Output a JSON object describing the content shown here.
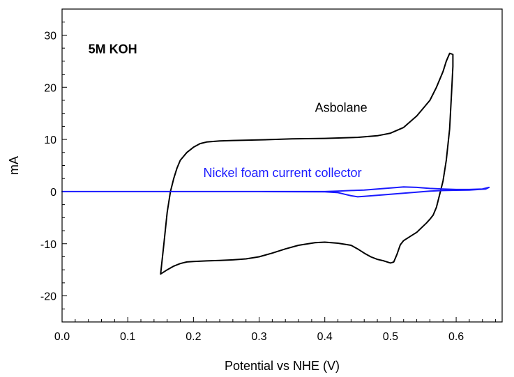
{
  "chart_data": {
    "type": "line",
    "title": "",
    "xlabel": "Potential vs NHE (V)",
    "ylabel": "mA",
    "xlim": [
      0.0,
      0.67
    ],
    "ylim": [
      -25,
      35
    ],
    "xticks": [
      0.0,
      0.1,
      0.2,
      0.3,
      0.4,
      0.5,
      0.6
    ],
    "xtick_labels": [
      "0.0",
      "0.1",
      "0.2",
      "0.3",
      "0.4",
      "0.5",
      "0.6"
    ],
    "yticks": [
      -20,
      -10,
      0,
      10,
      20,
      30
    ],
    "ytick_labels": [
      "-20",
      "-10",
      "0",
      "10",
      "20",
      "30"
    ],
    "grid": false,
    "annotations": [
      {
        "text": "5M KOH",
        "x": 0.04,
        "y": 26.5,
        "color": "#000000",
        "bold": true
      },
      {
        "text": "Asbolane",
        "x": 0.385,
        "y": 15.3,
        "color": "#000000",
        "bold": false
      },
      {
        "text": "Nickel foam current collector",
        "x": 0.215,
        "y": 2.8,
        "color": "#1a1aff",
        "bold": false
      }
    ],
    "series": [
      {
        "color": "#000000",
        "x": [
          0.15,
          0.155,
          0.16,
          0.165,
          0.17,
          0.175,
          0.18,
          0.19,
          0.2,
          0.21,
          0.22,
          0.24,
          0.26,
          0.3,
          0.35,
          0.4,
          0.45,
          0.48,
          0.5,
          0.52,
          0.54,
          0.56,
          0.57,
          0.58,
          0.585,
          0.59,
          0.595,
          0.595,
          0.593,
          0.59,
          0.585,
          0.58,
          0.575,
          0.57,
          0.565,
          0.56,
          0.555,
          0.55,
          0.545,
          0.54,
          0.53,
          0.52,
          0.515,
          0.51,
          0.505,
          0.5,
          0.49,
          0.48,
          0.47,
          0.46,
          0.45,
          0.44,
          0.42,
          0.4,
          0.385,
          0.36,
          0.34,
          0.32,
          0.3,
          0.28,
          0.26,
          0.24,
          0.22,
          0.2,
          0.19,
          0.18,
          0.17,
          0.16,
          0.15
        ],
        "y": [
          -15.8,
          -10.0,
          -4.0,
          0.0,
          2.5,
          4.5,
          6.0,
          7.5,
          8.5,
          9.2,
          9.5,
          9.7,
          9.8,
          9.9,
          10.1,
          10.2,
          10.4,
          10.7,
          11.2,
          12.3,
          14.5,
          17.5,
          20.0,
          23.0,
          25.0,
          26.5,
          26.3,
          24.0,
          19.0,
          12.0,
          6.0,
          2.0,
          -0.5,
          -3.0,
          -4.5,
          -5.3,
          -6.0,
          -6.6,
          -7.2,
          -7.8,
          -8.6,
          -9.4,
          -10.2,
          -12.0,
          -13.5,
          -13.7,
          -13.3,
          -13.0,
          -12.5,
          -11.8,
          -11.0,
          -10.3,
          -9.9,
          -9.7,
          -9.8,
          -10.3,
          -11.0,
          -11.8,
          -12.5,
          -12.9,
          -13.1,
          -13.2,
          -13.3,
          -13.4,
          -13.5,
          -13.8,
          -14.3,
          -15.0,
          -15.8
        ]
      },
      {
        "color": "#1a1aff",
        "x": [
          0.0,
          0.1,
          0.2,
          0.3,
          0.4,
          0.42,
          0.44,
          0.46,
          0.48,
          0.5,
          0.52,
          0.54,
          0.56,
          0.58,
          0.6,
          0.62,
          0.64,
          0.65,
          0.645,
          0.62,
          0.6,
          0.58,
          0.56,
          0.54,
          0.52,
          0.5,
          0.48,
          0.46,
          0.45,
          0.44,
          0.43,
          0.42,
          0.4,
          0.3,
          0.2,
          0.1,
          0.0
        ],
        "y": [
          0.0,
          0.0,
          0.0,
          0.0,
          0.0,
          0.1,
          0.2,
          0.3,
          0.5,
          0.7,
          0.9,
          0.8,
          0.6,
          0.5,
          0.4,
          0.4,
          0.5,
          0.8,
          0.5,
          0.3,
          0.25,
          0.2,
          0.1,
          -0.1,
          -0.3,
          -0.5,
          -0.7,
          -0.9,
          -1.0,
          -0.8,
          -0.5,
          -0.2,
          -0.05,
          0.0,
          0.0,
          0.0,
          0.0
        ]
      }
    ]
  }
}
